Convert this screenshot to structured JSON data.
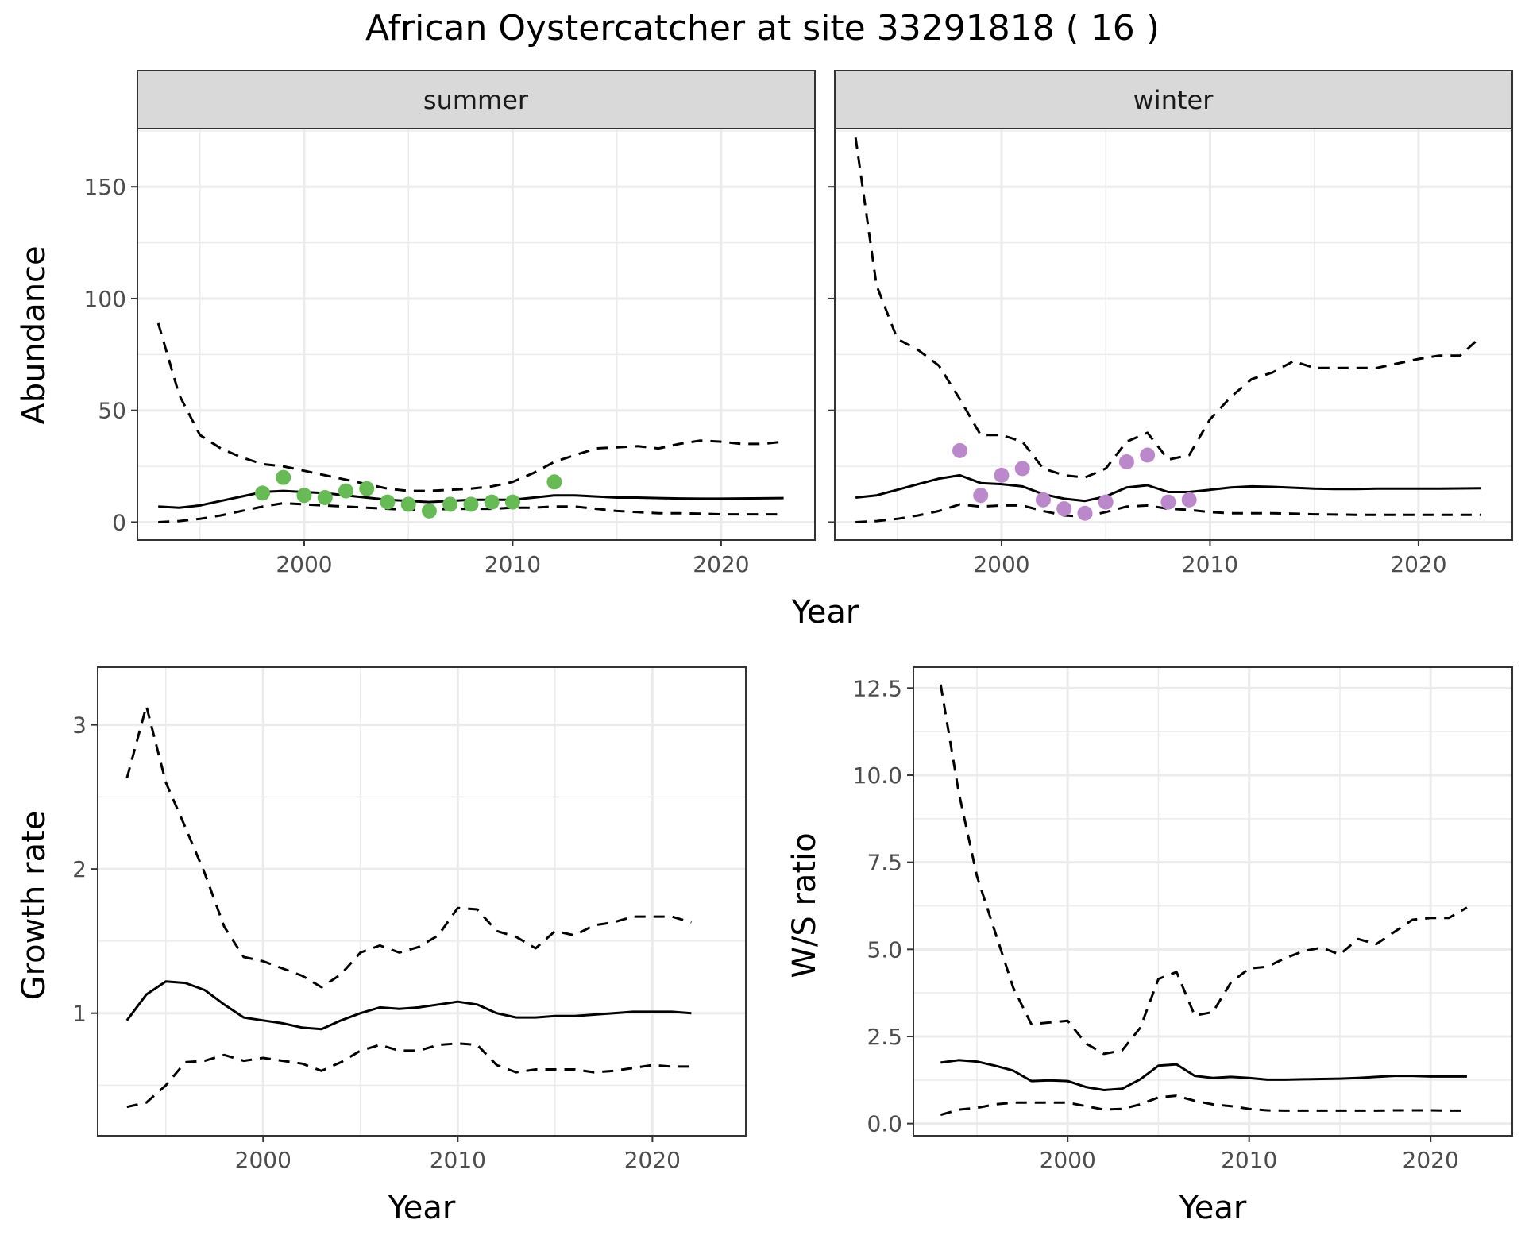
{
  "title": "African Oystercatcher at site 33291818 ( 16 )",
  "colors": {
    "summer_points": "#66bb55",
    "winter_points": "#bb88cc",
    "lines": "#000000",
    "grid": "#ebebeb",
    "strip": "#d9d9d9"
  },
  "chart_data": [
    {
      "type": "line",
      "panel": "abundance",
      "strip": "summer",
      "ylabel": "Abundance",
      "xlabel": "Year",
      "xlim": [
        1992,
        2024.5
      ],
      "ylim": [
        -8,
        176
      ],
      "x_ticks": [
        2000,
        2010,
        2020
      ],
      "y_ticks": [
        0,
        50,
        100,
        150
      ],
      "x": [
        1993,
        1994,
        1995,
        1996,
        1997,
        1998,
        1999,
        2000,
        2001,
        2002,
        2003,
        2004,
        2005,
        2006,
        2007,
        2008,
        2009,
        2010,
        2011,
        2012,
        2013,
        2014,
        2015,
        2016,
        2017,
        2018,
        2019,
        2020,
        2021,
        2022,
        2023
      ],
      "series": [
        {
          "role": "estimate",
          "style": "solid",
          "values": [
            7,
            6.5,
            7.5,
            9.5,
            11.5,
            13.5,
            14,
            13.5,
            13,
            12,
            11,
            10,
            9.5,
            9,
            9.5,
            10,
            10,
            10,
            11,
            12,
            12,
            11.5,
            11,
            11,
            10.8,
            10.6,
            10.5,
            10.5,
            10.6,
            10.7,
            10.8
          ]
        },
        {
          "role": "upper",
          "style": "dashed",
          "values": [
            89,
            57,
            39,
            33,
            29,
            26,
            25,
            23,
            21,
            19,
            17,
            15,
            14,
            14,
            14.5,
            15,
            16,
            18,
            22,
            27,
            30,
            33,
            33.5,
            34,
            33,
            35,
            36.5,
            36,
            35,
            35,
            36
          ]
        },
        {
          "role": "lower",
          "style": "dashed",
          "values": [
            0,
            0.5,
            1.5,
            3,
            5,
            7,
            8.5,
            8,
            7.5,
            7,
            6.5,
            6,
            5.5,
            5.5,
            6,
            6,
            6,
            6.5,
            6.5,
            7,
            7,
            6,
            5,
            4.5,
            4,
            4,
            3.8,
            3.5,
            3.5,
            3.5,
            3.5
          ]
        }
      ],
      "points": {
        "x": [
          1998,
          1999,
          2000,
          2001,
          2002,
          2003,
          2004,
          2005,
          2006,
          2007,
          2008,
          2009,
          2010,
          2012
        ],
        "y": [
          13,
          20,
          12,
          11,
          14,
          15,
          9,
          8,
          5,
          8,
          8,
          9,
          9,
          18
        ]
      }
    },
    {
      "type": "line",
      "panel": "abundance",
      "strip": "winter",
      "xlabel": "Year",
      "xlim": [
        1992,
        2024.5
      ],
      "ylim": [
        -8,
        176
      ],
      "x_ticks": [
        2000,
        2010,
        2020
      ],
      "y_ticks": [
        0,
        50,
        100,
        150
      ],
      "x": [
        1993,
        1994,
        1995,
        1996,
        1997,
        1998,
        1999,
        2000,
        2001,
        2002,
        2003,
        2004,
        2005,
        2006,
        2007,
        2008,
        2009,
        2010,
        2011,
        2012,
        2013,
        2014,
        2015,
        2016,
        2017,
        2018,
        2019,
        2020,
        2021,
        2022,
        2023
      ],
      "series": [
        {
          "role": "estimate",
          "style": "solid",
          "values": [
            11,
            12,
            14.5,
            17,
            19.5,
            21,
            17.5,
            17,
            16,
            12.5,
            10.5,
            9.5,
            11.5,
            15.5,
            16.5,
            13.5,
            13.5,
            14.5,
            15.5,
            16,
            15.8,
            15.4,
            15,
            14.8,
            14.8,
            15,
            15,
            15,
            15,
            15.1,
            15.2
          ]
        },
        {
          "role": "upper",
          "style": "dashed",
          "values": [
            172,
            106,
            82,
            77,
            70,
            55,
            39,
            39,
            36,
            24,
            21,
            20,
            24,
            36,
            40,
            28,
            30,
            46,
            56,
            64,
            67,
            72,
            69,
            69,
            69,
            69,
            71,
            73,
            74.5,
            74.5,
            83
          ]
        },
        {
          "role": "lower",
          "style": "dashed",
          "values": [
            0,
            0.5,
            1.5,
            3,
            5,
            8,
            7,
            7.5,
            7.5,
            5,
            3,
            2.5,
            4.5,
            7,
            7.5,
            6,
            5.5,
            4.5,
            4,
            4,
            4,
            3.8,
            3.5,
            3.4,
            3.3,
            3.3,
            3.3,
            3.3,
            3.3,
            3.3,
            3.3
          ]
        }
      ],
      "points": {
        "x": [
          1998,
          1999,
          2000,
          2001,
          2002,
          2003,
          2004,
          2005,
          2006,
          2007,
          2008,
          2009
        ],
        "y": [
          32,
          12,
          21,
          24,
          10,
          6,
          4,
          9,
          27,
          30,
          9,
          10
        ]
      }
    },
    {
      "type": "line",
      "panel": "growth",
      "xlabel": "Year",
      "ylabel": "Growth rate",
      "xlim": [
        1991.5,
        2024.8
      ],
      "ylim": [
        0.15,
        3.4
      ],
      "x_ticks": [
        2000,
        2010,
        2020
      ],
      "y_ticks": [
        1,
        2,
        3
      ],
      "x": [
        1993,
        1994,
        1995,
        1996,
        1997,
        1998,
        1999,
        2000,
        2001,
        2002,
        2003,
        2004,
        2005,
        2006,
        2007,
        2008,
        2009,
        2010,
        2011,
        2012,
        2013,
        2014,
        2015,
        2016,
        2017,
        2018,
        2019,
        2020,
        2021,
        2022
      ],
      "series": [
        {
          "role": "estimate",
          "style": "solid",
          "values": [
            0.95,
            1.13,
            1.22,
            1.21,
            1.16,
            1.06,
            0.97,
            0.95,
            0.93,
            0.9,
            0.89,
            0.95,
            1.0,
            1.04,
            1.03,
            1.04,
            1.06,
            1.08,
            1.06,
            1.0,
            0.97,
            0.97,
            0.98,
            0.98,
            0.99,
            1.0,
            1.01,
            1.01,
            1.01,
            1.0
          ]
        },
        {
          "role": "upper",
          "style": "dashed",
          "values": [
            2.63,
            3.13,
            2.6,
            2.29,
            1.97,
            1.6,
            1.39,
            1.36,
            1.31,
            1.26,
            1.18,
            1.27,
            1.42,
            1.47,
            1.42,
            1.46,
            1.54,
            1.73,
            1.72,
            1.57,
            1.53,
            1.45,
            1.57,
            1.54,
            1.61,
            1.63,
            1.67,
            1.67,
            1.67,
            1.63
          ]
        },
        {
          "role": "lower",
          "style": "dashed",
          "values": [
            0.35,
            0.38,
            0.5,
            0.66,
            0.67,
            0.71,
            0.67,
            0.69,
            0.67,
            0.65,
            0.6,
            0.66,
            0.74,
            0.78,
            0.74,
            0.74,
            0.78,
            0.79,
            0.78,
            0.64,
            0.59,
            0.61,
            0.61,
            0.61,
            0.59,
            0.6,
            0.62,
            0.64,
            0.63,
            0.63
          ]
        }
      ]
    },
    {
      "type": "line",
      "panel": "ratio",
      "xlabel": "Year",
      "ylabel": "W/S ratio",
      "xlim": [
        1991.5,
        2024.5
      ],
      "ylim": [
        -0.35,
        13.1
      ],
      "x_ticks": [
        2000,
        2010,
        2020
      ],
      "y_ticks": [
        "0.0",
        "2.5",
        "5.0",
        "7.5",
        "10.0",
        "12.5"
      ],
      "x": [
        1993,
        1994,
        1995,
        1996,
        1997,
        1998,
        1999,
        2000,
        2001,
        2002,
        2003,
        2004,
        2005,
        2006,
        2007,
        2008,
        2009,
        2010,
        2011,
        2012,
        2013,
        2014,
        2015,
        2016,
        2017,
        2018,
        2019,
        2020,
        2021,
        2022
      ],
      "series": [
        {
          "role": "estimate",
          "style": "solid",
          "values": [
            1.75,
            1.82,
            1.78,
            1.66,
            1.52,
            1.22,
            1.24,
            1.22,
            1.05,
            0.96,
            1.0,
            1.27,
            1.66,
            1.7,
            1.37,
            1.31,
            1.34,
            1.31,
            1.26,
            1.26,
            1.27,
            1.28,
            1.29,
            1.31,
            1.34,
            1.37,
            1.37,
            1.35,
            1.35,
            1.35
          ]
        },
        {
          "role": "upper",
          "style": "dashed",
          "values": [
            12.6,
            9.5,
            7.1,
            5.5,
            3.9,
            2.85,
            2.9,
            2.95,
            2.3,
            2.0,
            2.1,
            2.75,
            4.15,
            4.35,
            3.1,
            3.2,
            4.05,
            4.45,
            4.5,
            4.75,
            4.95,
            5.05,
            4.85,
            5.3,
            5.15,
            5.5,
            5.85,
            5.9,
            5.9,
            6.2
          ]
        },
        {
          "role": "lower",
          "style": "dashed",
          "values": [
            0.25,
            0.4,
            0.45,
            0.55,
            0.6,
            0.6,
            0.6,
            0.6,
            0.5,
            0.4,
            0.42,
            0.55,
            0.75,
            0.8,
            0.65,
            0.55,
            0.5,
            0.42,
            0.38,
            0.37,
            0.37,
            0.37,
            0.37,
            0.37,
            0.37,
            0.38,
            0.38,
            0.38,
            0.37,
            0.37
          ]
        }
      ]
    }
  ]
}
